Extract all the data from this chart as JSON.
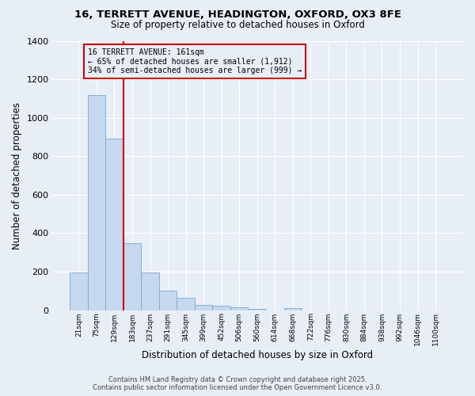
{
  "title_line1": "16, TERRETT AVENUE, HEADINGTON, OXFORD, OX3 8FE",
  "title_line2": "Size of property relative to detached houses in Oxford",
  "xlabel": "Distribution of detached houses by size in Oxford",
  "ylabel": "Number of detached properties",
  "categories": [
    "21sqm",
    "75sqm",
    "129sqm",
    "183sqm",
    "237sqm",
    "291sqm",
    "345sqm",
    "399sqm",
    "452sqm",
    "506sqm",
    "560sqm",
    "614sqm",
    "668sqm",
    "722sqm",
    "776sqm",
    "830sqm",
    "884sqm",
    "938sqm",
    "992sqm",
    "1046sqm",
    "1100sqm"
  ],
  "values": [
    195,
    1120,
    890,
    350,
    195,
    100,
    62,
    25,
    22,
    15,
    8,
    0,
    12,
    0,
    0,
    0,
    0,
    0,
    0,
    0,
    0
  ],
  "bar_color": "#c5d8f0",
  "bar_edge_color": "#7aaad0",
  "vline_color": "#cc0000",
  "annotation_text": "16 TERRETT AVENUE: 161sqm\n← 65% of detached houses are smaller (1,912)\n34% of semi-detached houses are larger (999) →",
  "annotation_box_color": "#cc0000",
  "ylim": [
    0,
    1400
  ],
  "yticks": [
    0,
    200,
    400,
    600,
    800,
    1000,
    1200,
    1400
  ],
  "background_color": "#e8eef8",
  "grid_color": "#ffffff",
  "footer_line1": "Contains HM Land Registry data © Crown copyright and database right 2025.",
  "footer_line2": "Contains public sector information licensed under the Open Government Licence v3.0."
}
